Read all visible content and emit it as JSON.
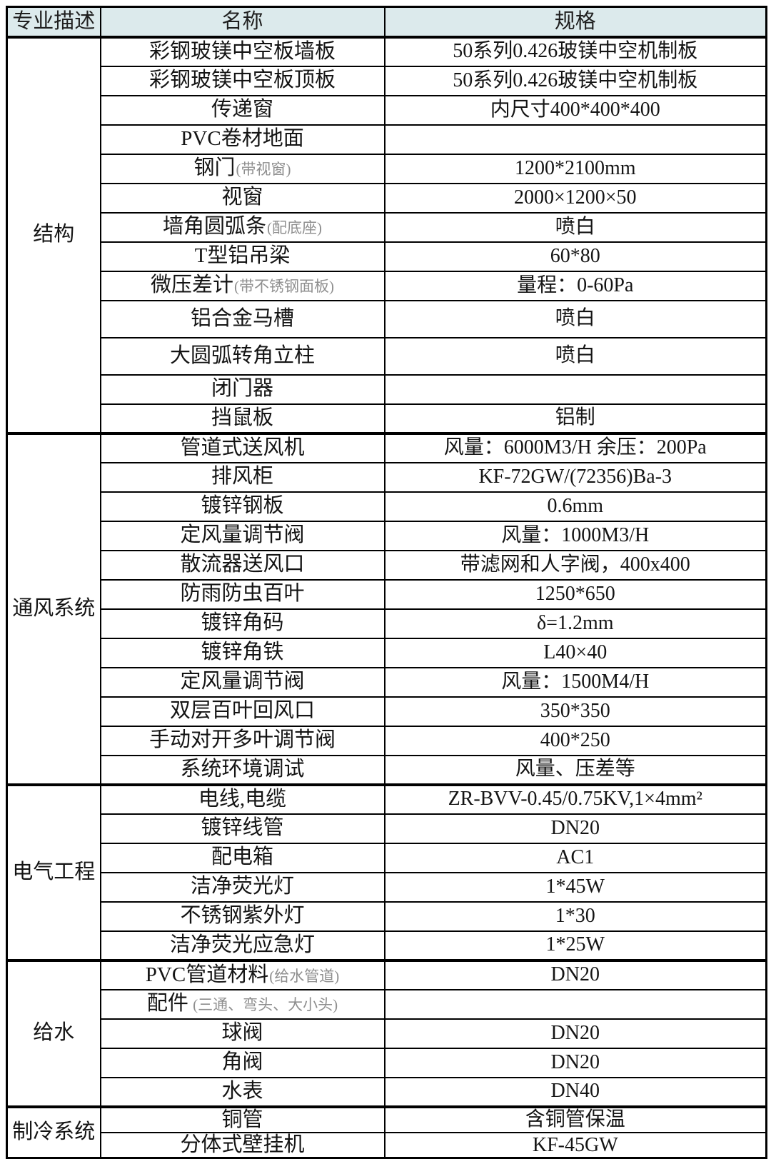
{
  "header": {
    "category": "专业描述",
    "name": "名称",
    "spec": "规格"
  },
  "sections": [
    {
      "label": "结构",
      "rows": [
        {
          "name": "彩钢玻镁中空板墙板",
          "spec": "50系列0.426玻镁中空机制板"
        },
        {
          "name": "彩钢玻镁中空板顶板",
          "spec": "50系列0.426玻镁中空机制板"
        },
        {
          "name": "传递窗",
          "spec": "内尺寸400*400*400"
        },
        {
          "name": "PVC卷材地面",
          "spec": ""
        },
        {
          "name": "钢门",
          "note": "(带视窗)",
          "spec": "1200*2100mm"
        },
        {
          "name": "视窗",
          "spec": "2000×1200×50"
        },
        {
          "name": "墙角圆弧条",
          "note": "(配底座)",
          "spec": "喷白"
        },
        {
          "name": "T型铝吊梁",
          "spec": "60*80"
        },
        {
          "name": "微压差计",
          "note": "(带不锈钢面板)",
          "spec": "量程：0-60Pa"
        },
        {
          "name": "铝合金马槽",
          "spec": "喷白"
        },
        {
          "name": "大圆弧转角立柱",
          "spec": "喷白"
        },
        {
          "name": "闭门器",
          "spec": ""
        },
        {
          "name": "挡鼠板",
          "spec": "铝制"
        }
      ]
    },
    {
      "label": "通风系统",
      "rows": [
        {
          "name": "管道式送风机",
          "spec": "风量：6000M3/H 余压：200Pa"
        },
        {
          "name": "排风柜",
          "spec": "KF-72GW/(72356)Ba-3"
        },
        {
          "name": "镀锌钢板",
          "spec": "0.6mm"
        },
        {
          "name": "定风量调节阀",
          "spec": "风量：1000M3/H"
        },
        {
          "name": "散流器送风口",
          "spec": "带滤网和人字阀，400x400"
        },
        {
          "name": "防雨防虫百叶",
          "spec": "1250*650"
        },
        {
          "name": "镀锌角码",
          "spec": "δ=1.2mm"
        },
        {
          "name": "镀锌角铁",
          "spec": "L40×40"
        },
        {
          "name": "定风量调节阀",
          "spec": "风量：1500M4/H"
        },
        {
          "name": "双层百叶回风口",
          "spec": "350*350"
        },
        {
          "name": "手动对开多叶调节阀",
          "spec": "400*250"
        },
        {
          "name": "系统环境调试",
          "spec": "风量、压差等"
        }
      ]
    },
    {
      "label": "电气工程",
      "rows": [
        {
          "name": "电线,电缆",
          "spec": "ZR-BVV-0.45/0.75KV,1×4mm²"
        },
        {
          "name": "镀锌线管",
          "spec": "DN20"
        },
        {
          "name": "配电箱",
          "spec": "AC1"
        },
        {
          "name": "洁净荧光灯",
          "spec": "1*45W"
        },
        {
          "name": "不锈钢紫外灯",
          "spec": "1*30"
        },
        {
          "name": "洁净荧光应急灯",
          "spec": "1*25W"
        }
      ]
    },
    {
      "label": "给水",
      "rows": [
        {
          "name": "PVC管道材料",
          "note": "(给水管道)",
          "spec": "DN20"
        },
        {
          "name": "配件",
          "note": " (三通、弯头、大小头)",
          "spec": ""
        },
        {
          "name": "球阀",
          "spec": "DN20"
        },
        {
          "name": "角阀",
          "spec": "DN20"
        },
        {
          "name": "水表",
          "spec": "DN40"
        }
      ]
    },
    {
      "label": "制冷系统",
      "rows": [
        {
          "name": "铜管",
          "spec": "含铜管保温"
        },
        {
          "name": "分体式壁挂机",
          "spec": "KF-45GW"
        }
      ]
    }
  ],
  "colors": {
    "header_bg": "#dceaec",
    "border": "#000000",
    "note_gray": "#8f8f8f"
  }
}
